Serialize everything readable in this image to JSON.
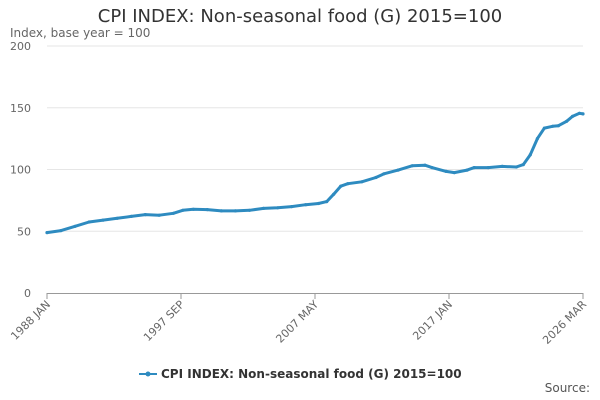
{
  "chart_data": {
    "type": "line",
    "title": "CPI INDEX: Non-seasonal food (G) 2015=100",
    "subtitle": "Index, base year = 100",
    "source_label": "Source:",
    "ylim": [
      0,
      200
    ],
    "y_ticks": [
      "0",
      "50",
      "100",
      "150",
      "200"
    ],
    "x_tick_labels": [
      "1988 JAN",
      "1997 SEP",
      "2007 MAY",
      "2017 JAN",
      "2026 MAR"
    ],
    "grid": true,
    "legend_position": "bottom",
    "colors": {
      "series": "#2e8bc0",
      "grid": "#e6e6e6"
    },
    "x_start": "1988-01",
    "x_end": "2026-03",
    "series": [
      {
        "name": "CPI INDEX: Non-seasonal food (G) 2015=100",
        "values": [
          [
            "1988-01",
            48.9
          ],
          [
            "1989-01",
            50.5
          ],
          [
            "1990-01",
            54.0
          ],
          [
            "1991-01",
            57.5
          ],
          [
            "1992-01",
            59.0
          ],
          [
            "1993-01",
            60.5
          ],
          [
            "1994-01",
            62.0
          ],
          [
            "1995-01",
            63.5
          ],
          [
            "1996-01",
            63.0
          ],
          [
            "1997-01",
            64.5
          ],
          [
            "1997-09",
            67.0
          ],
          [
            "1998-06",
            67.8
          ],
          [
            "1999-06",
            67.5
          ],
          [
            "2000-06",
            66.5
          ],
          [
            "2001-06",
            66.5
          ],
          [
            "2002-06",
            67.0
          ],
          [
            "2003-06",
            68.5
          ],
          [
            "2004-06",
            69.0
          ],
          [
            "2005-06",
            70.0
          ],
          [
            "2006-06",
            71.5
          ],
          [
            "2007-05",
            72.5
          ],
          [
            "2007-12",
            74.0
          ],
          [
            "2008-06",
            80.0
          ],
          [
            "2008-12",
            86.5
          ],
          [
            "2009-06",
            88.5
          ],
          [
            "2010-06",
            90.0
          ],
          [
            "2011-06",
            93.5
          ],
          [
            "2012-01",
            96.5
          ],
          [
            "2013-01",
            99.5
          ],
          [
            "2014-01",
            103.0
          ],
          [
            "2014-12",
            103.5
          ],
          [
            "2015-06",
            101.5
          ],
          [
            "2016-06",
            98.5
          ],
          [
            "2017-01",
            97.5
          ],
          [
            "2017-12",
            99.5
          ],
          [
            "2018-06",
            101.5
          ],
          [
            "2019-06",
            101.5
          ],
          [
            "2020-06",
            102.5
          ],
          [
            "2021-06",
            102.0
          ],
          [
            "2021-12",
            104.0
          ],
          [
            "2022-06",
            112.0
          ],
          [
            "2022-12",
            125.0
          ],
          [
            "2023-06",
            133.5
          ],
          [
            "2024-01",
            135.0
          ],
          [
            "2024-06",
            135.5
          ],
          [
            "2025-01",
            139.0
          ],
          [
            "2025-06",
            143.0
          ],
          [
            "2025-12",
            145.5
          ],
          [
            "2026-03",
            145.0
          ]
        ]
      }
    ]
  }
}
